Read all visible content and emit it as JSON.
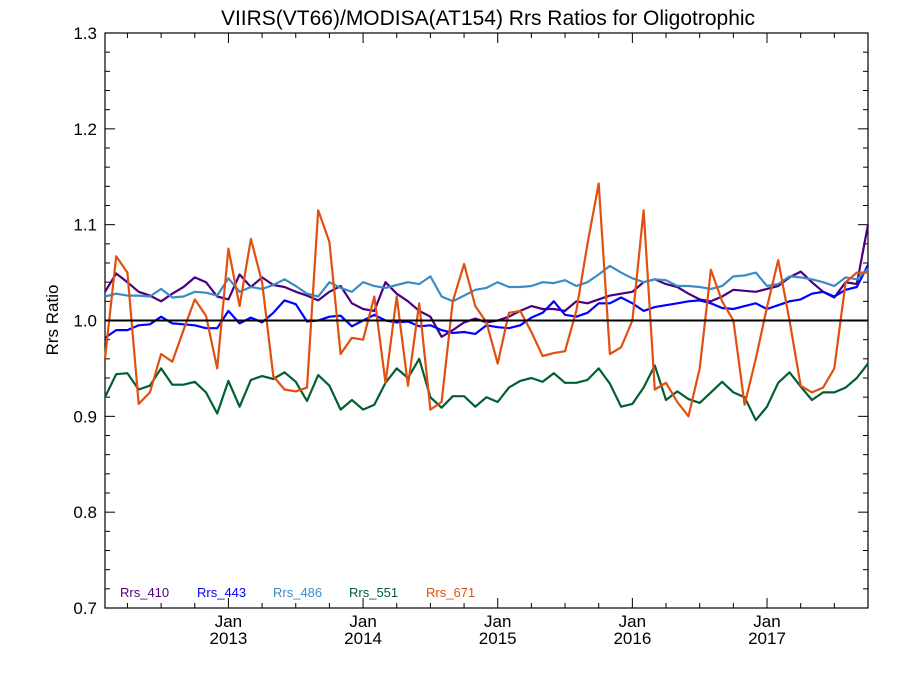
{
  "chart_data": {
    "type": "line",
    "title": "VIIRS(VT66)/MODISA(AT154)  Rrs Ratios for Oligotrophic",
    "xlabel": "",
    "ylabel": "Rrs Ratio",
    "xlim": [
      "2012-02-01",
      "2017-10-01"
    ],
    "ylim": [
      0.7,
      1.3
    ],
    "yticks": [
      "0.7",
      "0.8",
      "0.9",
      "1.0",
      "1.1",
      "1.2",
      "1.3"
    ],
    "xticks": [
      {
        "month": "Jan",
        "year": "2013",
        "date": "2013-01-01"
      },
      {
        "month": "Jan",
        "year": "2014",
        "date": "2014-01-01"
      },
      {
        "month": "Jan",
        "year": "2015",
        "date": "2015-01-01"
      },
      {
        "month": "Jan",
        "year": "2016",
        "date": "2016-01-01"
      },
      {
        "month": "Jan",
        "year": "2017",
        "date": "2017-01-01"
      }
    ],
    "reference_line": 1.0,
    "grid": false,
    "legend_position": "bottom-left",
    "x": [
      "2012-02",
      "2012-03",
      "2012-04",
      "2012-05",
      "2012-06",
      "2012-07",
      "2012-08",
      "2012-09",
      "2012-10",
      "2012-11",
      "2012-12",
      "2013-01",
      "2013-02",
      "2013-03",
      "2013-04",
      "2013-05",
      "2013-06",
      "2013-07",
      "2013-08",
      "2013-09",
      "2013-10",
      "2013-11",
      "2013-12",
      "2014-01",
      "2014-02",
      "2014-03",
      "2014-04",
      "2014-05",
      "2014-06",
      "2014-07",
      "2014-08",
      "2014-09",
      "2014-10",
      "2014-11",
      "2014-12",
      "2015-01",
      "2015-02",
      "2015-03",
      "2015-04",
      "2015-05",
      "2015-06",
      "2015-07",
      "2015-08",
      "2015-09",
      "2015-10",
      "2015-11",
      "2015-12",
      "2016-01",
      "2016-02",
      "2016-03",
      "2016-04",
      "2016-05",
      "2016-06",
      "2016-07",
      "2016-08",
      "2016-09",
      "2016-10",
      "2016-11",
      "2016-12",
      "2017-01",
      "2017-02",
      "2017-03",
      "2017-04",
      "2017-05",
      "2017-06",
      "2017-07",
      "2017-08",
      "2017-09",
      "2017-10"
    ],
    "series": [
      {
        "name": "Rrs_410",
        "color": "#4b0082",
        "values": [
          1.03,
          1.049,
          1.04,
          1.03,
          1.026,
          1.02,
          1.028,
          1.035,
          1.045,
          1.04,
          1.025,
          1.022,
          1.048,
          1.035,
          1.045,
          1.037,
          1.035,
          1.03,
          1.026,
          1.021,
          1.03,
          1.036,
          1.018,
          1.012,
          1.01,
          1.04,
          1.028,
          1.02,
          1.01,
          1.004,
          0.983,
          0.99,
          0.998,
          1.002,
          0.998,
          1.0,
          1.004,
          1.01,
          1.015,
          1.012,
          1.012,
          1.01,
          1.02,
          1.018,
          1.022,
          1.026,
          1.028,
          1.03,
          1.04,
          1.043,
          1.038,
          1.035,
          1.028,
          1.022,
          1.02,
          1.025,
          1.032,
          1.031,
          1.03,
          1.033,
          1.036,
          1.045,
          1.051,
          1.04,
          1.03,
          1.024,
          1.04,
          1.038,
          1.1
        ]
      },
      {
        "name": "Rrs_443",
        "color": "#0000ff",
        "values": [
          0.982,
          0.99,
          0.99,
          0.995,
          0.996,
          1.004,
          0.997,
          0.996,
          0.995,
          0.992,
          0.992,
          1.01,
          0.997,
          1.003,
          0.998,
          1.008,
          1.021,
          1.017,
          0.999,
          1.0,
          1.004,
          1.005,
          0.994,
          1.0,
          1.006,
          1.0,
          0.998,
          0.999,
          0.994,
          0.995,
          0.99,
          0.987,
          0.988,
          0.986,
          0.995,
          0.993,
          0.992,
          0.995,
          1.003,
          1.008,
          1.02,
          1.006,
          1.004,
          1.008,
          1.018,
          1.018,
          1.024,
          1.018,
          1.01,
          1.014,
          1.016,
          1.018,
          1.02,
          1.021,
          1.018,
          1.013,
          1.012,
          1.015,
          1.018,
          1.012,
          1.016,
          1.02,
          1.022,
          1.028,
          1.03,
          1.025,
          1.032,
          1.035,
          1.058
        ]
      },
      {
        "name": "Rrs_486",
        "color": "#3a8cc4",
        "values": [
          1.025,
          1.028,
          1.026,
          1.026,
          1.025,
          1.033,
          1.024,
          1.025,
          1.03,
          1.029,
          1.026,
          1.044,
          1.03,
          1.035,
          1.033,
          1.037,
          1.043,
          1.036,
          1.028,
          1.025,
          1.04,
          1.034,
          1.03,
          1.04,
          1.036,
          1.034,
          1.037,
          1.04,
          1.038,
          1.046,
          1.025,
          1.02,
          1.026,
          1.032,
          1.034,
          1.04,
          1.035,
          1.035,
          1.036,
          1.04,
          1.039,
          1.042,
          1.036,
          1.04,
          1.048,
          1.057,
          1.05,
          1.044,
          1.04,
          1.043,
          1.042,
          1.036,
          1.036,
          1.035,
          1.033,
          1.036,
          1.046,
          1.047,
          1.05,
          1.036,
          1.038,
          1.046,
          1.045,
          1.043,
          1.04,
          1.036,
          1.045,
          1.043,
          1.054
        ]
      },
      {
        "name": "Rrs_551",
        "color": "#006030",
        "values": [
          0.92,
          0.944,
          0.945,
          0.928,
          0.932,
          0.95,
          0.933,
          0.933,
          0.936,
          0.925,
          0.903,
          0.937,
          0.91,
          0.938,
          0.942,
          0.939,
          0.946,
          0.936,
          0.916,
          0.943,
          0.932,
          0.907,
          0.917,
          0.907,
          0.912,
          0.935,
          0.95,
          0.94,
          0.96,
          0.92,
          0.909,
          0.921,
          0.921,
          0.91,
          0.92,
          0.915,
          0.93,
          0.937,
          0.94,
          0.936,
          0.945,
          0.935,
          0.935,
          0.938,
          0.95,
          0.934,
          0.91,
          0.913,
          0.93,
          0.953,
          0.917,
          0.926,
          0.918,
          0.914,
          0.925,
          0.936,
          0.925,
          0.92,
          0.896,
          0.91,
          0.935,
          0.946,
          0.931,
          0.917,
          0.925,
          0.925,
          0.93,
          0.94,
          0.955
        ]
      },
      {
        "name": "Rrs_671",
        "color": "#e05010",
        "values": [
          0.96,
          1.067,
          1.05,
          0.913,
          0.925,
          0.965,
          0.957,
          0.99,
          1.022,
          1.005,
          0.95,
          1.075,
          1.015,
          1.085,
          1.04,
          0.942,
          0.928,
          0.926,
          0.93,
          1.115,
          1.082,
          0.965,
          0.982,
          0.98,
          1.025,
          0.935,
          1.025,
          0.932,
          1.018,
          0.907,
          0.915,
          1.02,
          1.059,
          1.015,
          0.998,
          0.955,
          1.008,
          1.01,
          0.988,
          0.963,
          0.966,
          0.968,
          1.01,
          1.08,
          1.143,
          0.965,
          0.972,
          1.0,
          1.115,
          0.928,
          0.935,
          0.915,
          0.9,
          0.95,
          1.053,
          1.02,
          1.0,
          0.912,
          0.96,
          1.014,
          1.063,
          1.0,
          0.932,
          0.925,
          0.93,
          0.95,
          1.04,
          1.05,
          1.05
        ]
      }
    ]
  }
}
